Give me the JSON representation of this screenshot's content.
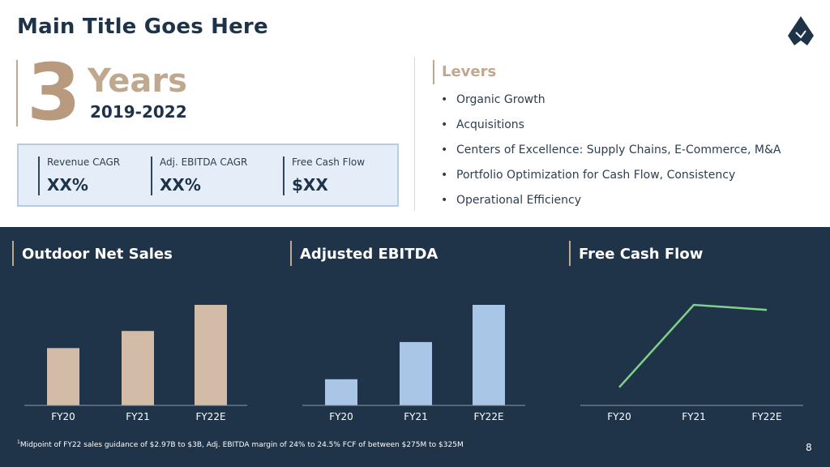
{
  "header": {
    "title": "Main Title Goes Here",
    "logo_icon": "mountain-logo-icon"
  },
  "period": {
    "number": "3",
    "unit": "Years",
    "range": "2019-2022"
  },
  "metrics": [
    {
      "label": "Revenue CAGR",
      "value": "XX%"
    },
    {
      "label": "Adj. EBITDA CAGR",
      "value": "XX%"
    },
    {
      "label": "Free Cash Flow",
      "value": "$XX"
    }
  ],
  "levers": {
    "title": "Levers",
    "items": [
      "Organic Growth",
      "Acquisitions",
      "Centers of Excellence: Supply Chains, E-Commerce, M&A",
      "Portfolio Optimization for Cash Flow, Consistency",
      "Operational Efficiency"
    ]
  },
  "panels": [
    {
      "title": "Outdoor Net Sales"
    },
    {
      "title": "Adjusted EBITDA"
    },
    {
      "title": "Free Cash Flow"
    }
  ],
  "chart_data": [
    {
      "type": "bar",
      "title": "Outdoor Net Sales",
      "categories": [
        "FY20",
        "FY21",
        "FY22E"
      ],
      "values": [
        57,
        74,
        100
      ],
      "ylim": [
        0,
        100
      ],
      "color": "#d3bca7",
      "grid": false
    },
    {
      "type": "bar",
      "title": "Adjusted EBITDA",
      "categories": [
        "FY20",
        "FY21",
        "FY22E"
      ],
      "values": [
        26,
        63,
        100
      ],
      "ylim": [
        0,
        100
      ],
      "color": "#aac6e6",
      "grid": false
    },
    {
      "type": "line",
      "title": "Free Cash Flow",
      "categories": [
        "FY20",
        "FY21",
        "FY22E"
      ],
      "values": [
        18,
        100,
        95
      ],
      "ylim": [
        0,
        100
      ],
      "color": "#7ed389",
      "grid": false
    }
  ],
  "footnote": {
    "marker": "1",
    "text": "Midpoint of FY22 sales guidance of $2.97B to $3B, Adj. EBITDA margin of 24% to 24.5% FCF of between $275M to $325M"
  },
  "page_number": "8"
}
